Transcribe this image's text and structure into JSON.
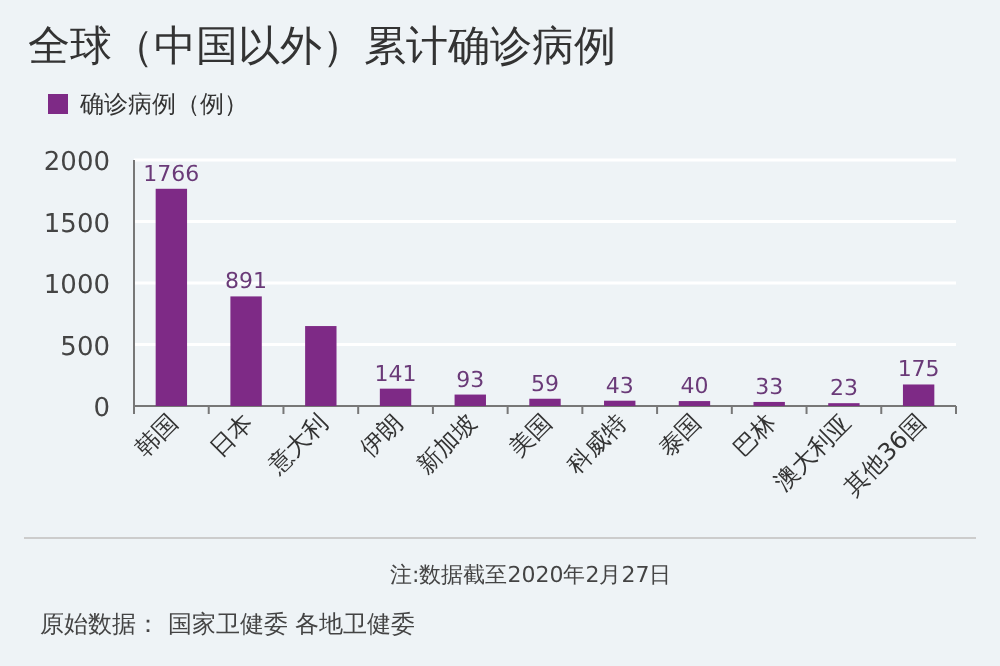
{
  "chart_data": {
    "type": "bar",
    "title": "全球（中国以外）累计确诊病例",
    "categories": [
      "韩国",
      "日本",
      "意大利",
      "伊朗",
      "新加坡",
      "美国",
      "科威特",
      "泰国",
      "巴林",
      "澳大利亚",
      "其他36国"
    ],
    "series": [
      {
        "name": "确诊病例（例）",
        "color": "#7e2a86",
        "values": [
          1766,
          891,
          650,
          141,
          93,
          59,
          43,
          40,
          33,
          23,
          175
        ],
        "value_labels": [
          "1766",
          "891",
          null,
          "141",
          "93",
          "59",
          "43",
          "40",
          "33",
          "23",
          "175"
        ]
      }
    ],
    "ylim": [
      0,
      2000
    ],
    "yticks": [
      0,
      500,
      1000,
      1500,
      2000
    ],
    "grid": "y",
    "legend": "top left",
    "annotations": [
      "注:数据截至2020年2月27日",
      "原始数据：  国家卫健委  各地卫健委"
    ]
  }
}
